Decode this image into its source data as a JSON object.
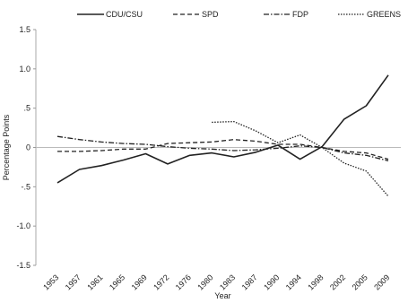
{
  "chart_data": {
    "type": "line",
    "title": "",
    "xlabel": "Year",
    "ylabel": "Percentage Points",
    "ylim": [
      -1.5,
      1.5
    ],
    "yticks": [
      1.5,
      1.0,
      0.5,
      0,
      -0.5,
      -1.0,
      -1.5
    ],
    "ytick_labels": [
      "1.5",
      "1.0",
      ".5",
      "0",
      "-.5",
      "-1.0",
      "-1.5"
    ],
    "categories": [
      "1953",
      "1957",
      "1961",
      "1965",
      "1969",
      "1972",
      "1976",
      "1980",
      "1983",
      "1987",
      "1990",
      "1994",
      "1998",
      "2002",
      "2005",
      "2009"
    ],
    "zero_line": true,
    "grid": false,
    "legend_position": "top",
    "series": [
      {
        "name": "CDU/CSU",
        "style": "solid",
        "values": [
          -0.45,
          -0.28,
          -0.23,
          -0.16,
          -0.08,
          -0.21,
          -0.1,
          -0.07,
          -0.12,
          -0.06,
          0.03,
          -0.15,
          0.01,
          0.36,
          0.53,
          0.92
        ]
      },
      {
        "name": "SPD",
        "style": "dashed",
        "values": [
          -0.05,
          -0.05,
          -0.04,
          -0.02,
          -0.02,
          0.05,
          0.06,
          0.07,
          0.1,
          0.08,
          0.04,
          0.04,
          0.0,
          -0.05,
          -0.07,
          -0.15
        ]
      },
      {
        "name": "FDP",
        "style": "dashdot",
        "values": [
          0.14,
          0.1,
          0.07,
          0.05,
          0.04,
          0.01,
          -0.01,
          -0.02,
          -0.04,
          -0.03,
          -0.01,
          0.02,
          0.0,
          -0.07,
          -0.1,
          -0.17
        ]
      },
      {
        "name": "GREENS",
        "style": "dotted",
        "values": [
          null,
          null,
          null,
          null,
          null,
          null,
          null,
          0.32,
          0.33,
          0.21,
          0.06,
          0.16,
          0.0,
          -0.2,
          -0.3,
          -0.62
        ]
      }
    ]
  }
}
